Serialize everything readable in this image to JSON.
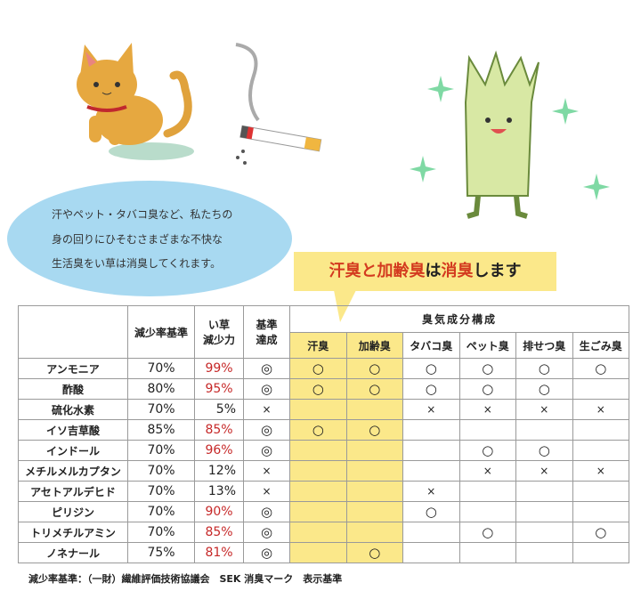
{
  "intro_text": [
    "汗やペット・タバコ臭など、私たちの",
    "身の回りにひそむさまざまな不快な",
    "生活臭をい草は消臭してくれます。"
  ],
  "callout": {
    "part1": "汗臭と加齢臭",
    "part2": "は",
    "part3": "消臭",
    "part4": "します"
  },
  "table": {
    "headers": {
      "standard": "減少率基準",
      "igusa": [
        "い草",
        "減少力"
      ],
      "achieved": [
        "基準",
        "達成"
      ],
      "group": "臭気成分構成",
      "odors": [
        "汗臭",
        "加齢臭",
        "タバコ臭",
        "ペット臭",
        "排せつ臭",
        "生ごみ臭"
      ]
    },
    "rows": [
      {
        "name": "アンモニア",
        "standard": "70%",
        "igusa": "99%",
        "achieved": "◎",
        "odors": [
          "○",
          "○",
          "○",
          "○",
          "○",
          "○"
        ]
      },
      {
        "name": "酢酸",
        "standard": "80%",
        "igusa": "95%",
        "achieved": "◎",
        "odors": [
          "○",
          "○",
          "○",
          "○",
          "○",
          ""
        ]
      },
      {
        "name": "硫化水素",
        "standard": "70%",
        "igusa": "5%",
        "achieved": "×",
        "odors": [
          "",
          "",
          "×",
          "×",
          "×",
          "×"
        ]
      },
      {
        "name": "イソ吉草酸",
        "standard": "85%",
        "igusa": "85%",
        "achieved": "◎",
        "odors": [
          "○",
          "○",
          "",
          "",
          "",
          ""
        ]
      },
      {
        "name": "インドール",
        "standard": "70%",
        "igusa": "96%",
        "achieved": "◎",
        "odors": [
          "",
          "",
          "",
          "○",
          "○",
          ""
        ]
      },
      {
        "name": "メチルメルカプタン",
        "standard": "70%",
        "igusa": "12%",
        "achieved": "×",
        "odors": [
          "",
          "",
          "",
          "×",
          "×",
          "×"
        ]
      },
      {
        "name": "アセトアルデヒド",
        "standard": "70%",
        "igusa": "13%",
        "achieved": "×",
        "odors": [
          "",
          "",
          "×",
          "",
          "",
          ""
        ]
      },
      {
        "name": "ピリジン",
        "standard": "70%",
        "igusa": "90%",
        "achieved": "◎",
        "odors": [
          "",
          "",
          "○",
          "",
          "",
          ""
        ]
      },
      {
        "name": "トリメチルアミン",
        "standard": "70%",
        "igusa": "85%",
        "achieved": "◎",
        "odors": [
          "",
          "",
          "",
          "○",
          "",
          "○"
        ]
      },
      {
        "name": "ノネナール",
        "standard": "75%",
        "igusa": "81%",
        "achieved": "◎",
        "odors": [
          "",
          "○",
          "",
          "",
          "",
          ""
        ]
      }
    ]
  },
  "footnote": "減少率基準：（一財）繊維評価技術協議会　SEK 消臭マーク　表示基準",
  "colors": {
    "highlight": "#fbe88a",
    "ellipse": "#a8d9f1",
    "red": "#c62828"
  },
  "illustrations": [
    "cat-icon",
    "cigarette-icon",
    "igusa-character-icon"
  ]
}
